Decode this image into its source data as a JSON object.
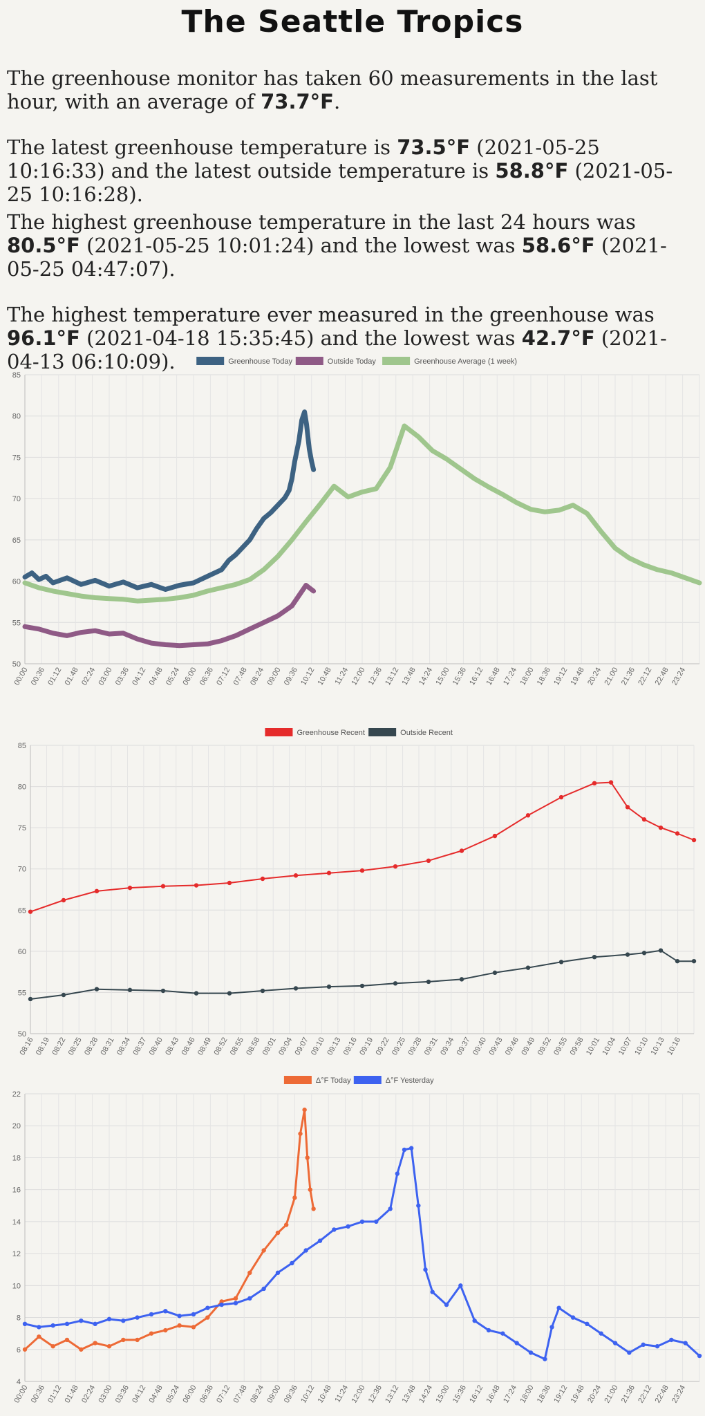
{
  "title": "The Seattle Tropics",
  "summary": {
    "p1": {
      "t1": "The greenhouse monitor has taken ",
      "count": "60",
      "t2": " measurements in the last hour, with an average of ",
      "avg": "73.7°F",
      "t3": "."
    },
    "p2": {
      "t1": "The latest greenhouse temperature is ",
      "gh_temp": "73.5°F",
      "t2": " (2021-05-25 10:16:33) and the latest outside temperature is ",
      "out_temp": "58.8°F",
      "t3": " (2021-05-25 10:16:28)."
    },
    "p3": {
      "t1": "The highest greenhouse temperature in the last 24 hours was ",
      "high": "80.5°F",
      "t2": " (2021-05-25 10:01:24) and the lowest was ",
      "low": "58.6°F",
      "t3": " (2021-05-25 04:47:07)."
    },
    "p4": {
      "t1": "The highest temperature ever measured in the greenhouse was ",
      "high": "96.1°F",
      "t2": " (2021-04-18 15:35:45) and the lowest was ",
      "low": "42.7°F",
      "t3": " (2021-04-13 06:10:09)."
    }
  },
  "chart_data": [
    {
      "type": "line",
      "ylim": [
        50,
        85
      ],
      "yticks": [
        50,
        55,
        60,
        65,
        70,
        75,
        80,
        85
      ],
      "x_ticks": [
        "00:00",
        "00:36",
        "01:12",
        "01:48",
        "02:24",
        "03:00",
        "03:36",
        "04:12",
        "04:48",
        "05:24",
        "06:00",
        "06:36",
        "07:12",
        "07:48",
        "08:24",
        "09:00",
        "09:36",
        "10:12",
        "10:48",
        "11:24",
        "12:00",
        "12:36",
        "13:12",
        "13:48",
        "14:24",
        "15:00",
        "15:36",
        "16:12",
        "16:48",
        "17:24",
        "18:00",
        "18:36",
        "19:12",
        "19:48",
        "20:24",
        "21:00",
        "21:36",
        "22:12",
        "22:48",
        "23:24"
      ],
      "legend_position": "top",
      "grid": true,
      "series": [
        {
          "name": "Greenhouse Today",
          "color": "#3d6282",
          "x": [
            0,
            0.25,
            0.5,
            0.75,
            1,
            1.5,
            2,
            2.5,
            3,
            3.5,
            4,
            4.5,
            5,
            5.5,
            6,
            6.5,
            7,
            7.25,
            7.5,
            7.75,
            8,
            8.25,
            8.5,
            8.75,
            9,
            9.25,
            9.4,
            9.5,
            9.6,
            9.75,
            9.85,
            9.95,
            10.02,
            10.07,
            10.12,
            10.2,
            10.27
          ],
          "y": [
            60.5,
            61,
            60.2,
            60.6,
            59.8,
            60.4,
            59.6,
            60.1,
            59.4,
            59.9,
            59.2,
            59.6,
            59.0,
            59.5,
            59.8,
            60.6,
            61.4,
            62.5,
            63.2,
            64.1,
            65.0,
            66.4,
            67.6,
            68.3,
            69.2,
            70.1,
            71.0,
            72.4,
            74.5,
            77.0,
            79.5,
            80.5,
            79.0,
            77.5,
            76.0,
            74.5,
            73.5
          ]
        },
        {
          "name": "Outside Today",
          "color": "#8f5a86",
          "x": [
            0,
            0.5,
            1,
            1.5,
            2,
            2.5,
            3,
            3.5,
            4,
            4.5,
            5,
            5.5,
            6,
            6.5,
            7,
            7.5,
            8,
            8.5,
            9,
            9.5,
            10,
            10.27
          ],
          "y": [
            54.5,
            54.2,
            53.7,
            53.4,
            53.8,
            54.0,
            53.6,
            53.7,
            53.0,
            52.5,
            52.3,
            52.2,
            52.3,
            52.4,
            52.8,
            53.4,
            54.2,
            55.0,
            55.8,
            57.0,
            59.5,
            58.8
          ]
        },
        {
          "name": "Greenhouse Average (1 week)",
          "color": "#9fc68d",
          "x": [
            0,
            0.5,
            1,
            1.5,
            2,
            2.5,
            3,
            3.5,
            4,
            4.5,
            5,
            5.5,
            6,
            6.5,
            7,
            7.5,
            8,
            8.5,
            9,
            9.5,
            10,
            10.5,
            11,
            11.5,
            12,
            12.5,
            13,
            13.5,
            14,
            14.5,
            15,
            15.5,
            16,
            16.5,
            17,
            17.5,
            18,
            18.5,
            19,
            19.5,
            20,
            20.5,
            21,
            21.5,
            22,
            22.5,
            23,
            23.5,
            24
          ],
          "y": [
            59.8,
            59.2,
            58.8,
            58.5,
            58.2,
            58.0,
            57.9,
            57.8,
            57.6,
            57.7,
            57.8,
            58.0,
            58.3,
            58.8,
            59.2,
            59.6,
            60.2,
            61.4,
            63.0,
            65.0,
            67.2,
            69.3,
            71.5,
            70.2,
            70.8,
            71.2,
            73.8,
            78.8,
            77.5,
            75.8,
            74.8,
            73.6,
            72.4,
            71.4,
            70.5,
            69.5,
            68.7,
            68.4,
            68.6,
            69.2,
            68.2,
            66.0,
            64.0,
            62.8,
            62.0,
            61.4,
            61.0,
            60.4,
            59.8
          ]
        }
      ]
    },
    {
      "type": "line",
      "ylim": [
        50,
        85
      ],
      "yticks": [
        50,
        55,
        60,
        65,
        70,
        75,
        80,
        85
      ],
      "x_ticks": [
        "08:16",
        "08:19",
        "08:22",
        "08:25",
        "08:28",
        "08:31",
        "08:34",
        "08:37",
        "08:40",
        "08:43",
        "08:46",
        "08:49",
        "08:52",
        "08:55",
        "08:58",
        "09:01",
        "09:04",
        "09:07",
        "09:10",
        "09:13",
        "09:16",
        "09:19",
        "09:22",
        "09:25",
        "09:28",
        "09:31",
        "09:34",
        "09:37",
        "09:40",
        "09:43",
        "09:46",
        "09:49",
        "09:52",
        "09:55",
        "09:58",
        "10:01",
        "10:04",
        "10:07",
        "10:10",
        "10:13",
        "10:16"
      ],
      "legend_position": "top",
      "grid": true,
      "series": [
        {
          "name": "Greenhouse Recent",
          "color": "#e52b2b",
          "x": [
            0,
            6,
            12,
            18,
            24,
            30,
            36,
            42,
            48,
            54,
            60,
            66,
            72,
            78,
            84,
            90,
            96,
            102,
            105,
            108,
            111,
            114,
            117,
            120
          ],
          "y": [
            64.8,
            66.2,
            67.3,
            67.7,
            67.9,
            68.0,
            68.3,
            68.8,
            69.2,
            69.5,
            69.8,
            70.3,
            71.0,
            72.2,
            74.0,
            76.5,
            78.7,
            80.4,
            80.5,
            77.5,
            76.0,
            75.0,
            74.3,
            73.5
          ]
        },
        {
          "name": "Outside Recent",
          "color": "#36474f",
          "x": [
            0,
            6,
            12,
            18,
            24,
            30,
            36,
            42,
            48,
            54,
            60,
            66,
            72,
            78,
            84,
            90,
            96,
            102,
            108,
            111,
            114,
            117,
            120
          ],
          "y": [
            54.2,
            54.7,
            55.4,
            55.3,
            55.2,
            54.9,
            54.9,
            55.2,
            55.5,
            55.7,
            55.8,
            56.1,
            56.3,
            56.6,
            57.4,
            58.0,
            58.7,
            59.3,
            59.6,
            59.8,
            60.1,
            58.8,
            58.8
          ]
        }
      ]
    },
    {
      "type": "line",
      "ylim": [
        4,
        22
      ],
      "yticks": [
        4,
        6,
        8,
        10,
        12,
        14,
        16,
        18,
        20,
        22
      ],
      "x_ticks": [
        "00:00",
        "00:36",
        "01:12",
        "01:48",
        "02:24",
        "03:00",
        "03:36",
        "04:12",
        "04:48",
        "05:24",
        "06:00",
        "06:36",
        "07:12",
        "07:48",
        "08:24",
        "09:00",
        "09:36",
        "10:12",
        "10:48",
        "11:24",
        "12:00",
        "12:36",
        "13:12",
        "13:48",
        "14:24",
        "15:00",
        "15:36",
        "16:12",
        "16:48",
        "17:24",
        "18:00",
        "18:36",
        "19:12",
        "19:48",
        "20:24",
        "21:00",
        "21:36",
        "22:12",
        "22:48",
        "23:24"
      ],
      "legend_position": "top",
      "grid": true,
      "series": [
        {
          "name": "Δ°F Today",
          "color": "#ed6a36",
          "x": [
            0,
            0.5,
            1,
            1.5,
            2,
            2.5,
            3,
            3.5,
            4,
            4.5,
            5,
            5.5,
            6,
            6.5,
            7,
            7.5,
            8,
            8.5,
            9,
            9.3,
            9.6,
            9.8,
            9.95,
            10.05,
            10.15,
            10.27
          ],
          "y": [
            6.0,
            6.8,
            6.2,
            6.6,
            6.0,
            6.4,
            6.2,
            6.6,
            6.6,
            7.0,
            7.2,
            7.5,
            7.4,
            8.0,
            9.0,
            9.2,
            10.8,
            12.2,
            13.3,
            13.8,
            15.5,
            19.5,
            21.0,
            18.0,
            16.0,
            14.8
          ]
        },
        {
          "name": "Δ°F Yesterday",
          "color": "#3d62f0",
          "x": [
            0,
            0.5,
            1,
            1.5,
            2,
            2.5,
            3,
            3.5,
            4,
            4.5,
            5,
            5.5,
            6,
            6.5,
            7,
            7.5,
            8,
            8.5,
            9,
            9.5,
            10,
            10.5,
            11,
            11.5,
            12,
            12.5,
            13,
            13.25,
            13.5,
            13.75,
            14,
            14.25,
            14.5,
            15,
            15.5,
            16,
            16.5,
            17,
            17.5,
            18,
            18.5,
            18.75,
            19,
            19.5,
            20,
            20.5,
            21,
            21.5,
            22,
            22.5,
            23,
            23.5,
            24
          ],
          "y": [
            7.6,
            7.4,
            7.5,
            7.6,
            7.8,
            7.6,
            7.9,
            7.8,
            8.0,
            8.2,
            8.4,
            8.1,
            8.2,
            8.6,
            8.8,
            8.9,
            9.2,
            9.8,
            10.8,
            11.4,
            12.2,
            12.8,
            13.5,
            13.7,
            14.0,
            14.0,
            14.8,
            17.0,
            18.5,
            18.6,
            15.0,
            11.0,
            9.6,
            8.8,
            10.0,
            7.8,
            7.2,
            7.0,
            6.4,
            5.8,
            5.4,
            7.4,
            8.6,
            8.0,
            7.6,
            7.0,
            6.4,
            5.8,
            6.3,
            6.2,
            6.6,
            6.4,
            5.6
          ]
        }
      ]
    }
  ]
}
